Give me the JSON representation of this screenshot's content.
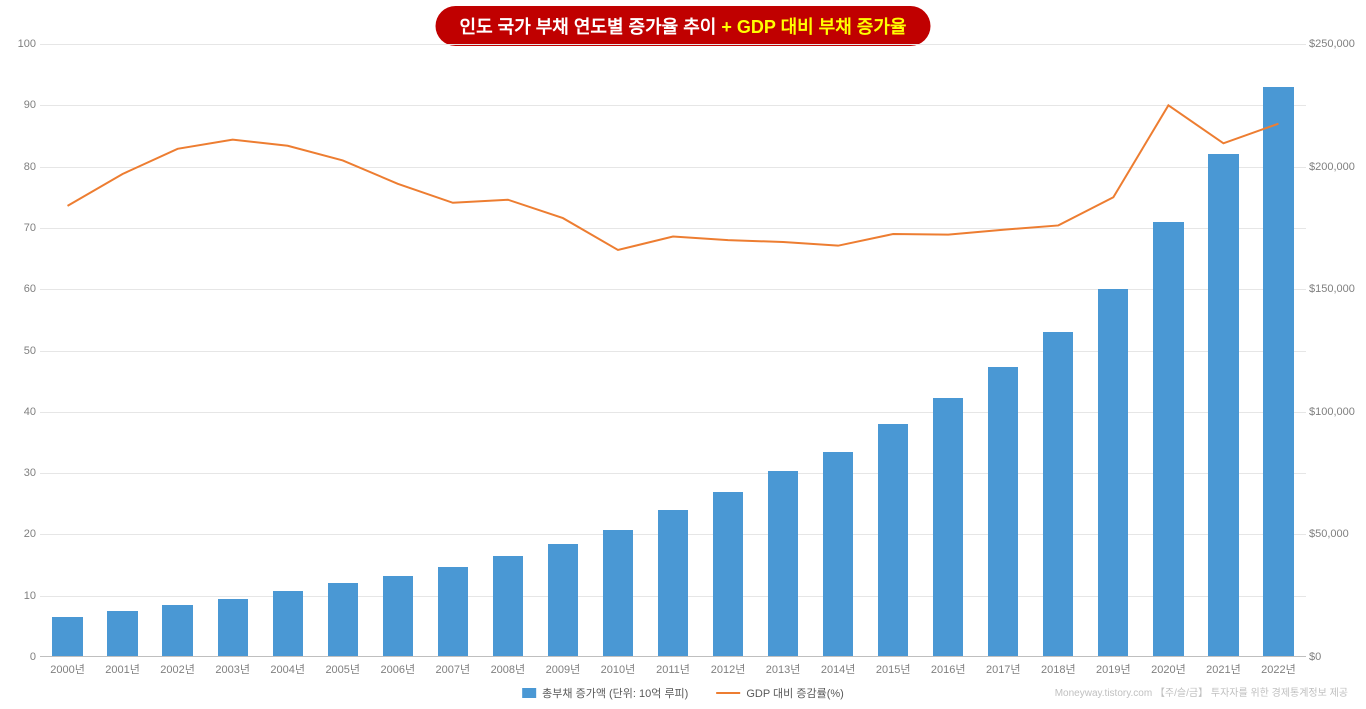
{
  "title": {
    "part1_white": "인도 국가 부채 연도별 증가율 추이 ",
    "plus": "+",
    "part2_yellow": " GDP 대비 부채 증가율",
    "background_color": "#c00000",
    "text_color_primary": "#ffffff",
    "text_color_accent": "#ffff00",
    "fontsize": 18
  },
  "chart": {
    "type": "bar+line",
    "categories": [
      "2000년",
      "2001년",
      "2002년",
      "2003년",
      "2004년",
      "2005년",
      "2006년",
      "2007년",
      "2008년",
      "2009년",
      "2010년",
      "2011년",
      "2012년",
      "2013년",
      "2014년",
      "2015년",
      "2016년",
      "2017년",
      "2018년",
      "2019년",
      "2020년",
      "2021년",
      "2022년"
    ],
    "bar_values_left_axis": [
      6.5,
      7.5,
      8.5,
      9.5,
      10.8,
      12.0,
      13.2,
      14.7,
      16.4,
      18.5,
      20.8,
      24.0,
      27.0,
      30.3,
      33.4,
      38.0,
      42.2,
      47.3,
      53.0,
      60.0,
      71.0,
      82.0,
      93.0
    ],
    "line_values_left_axis": [
      73.6,
      78.8,
      82.9,
      84.4,
      83.4,
      81.0,
      77.2,
      74.1,
      74.6,
      71.6,
      66.4,
      68.6,
      68.0,
      67.7,
      67.1,
      69.0,
      68.9,
      69.7,
      70.4,
      75.0,
      90.0,
      83.8,
      87.0
    ],
    "bar_color": "#4a98d4",
    "line_color": "#ed7d31",
    "line_width": 2,
    "left_axis": {
      "min": 0,
      "max": 100,
      "step": 10,
      "ticks": [
        0,
        10,
        20,
        30,
        40,
        50,
        60,
        70,
        80,
        90,
        100
      ]
    },
    "right_axis": {
      "min": 0,
      "max": 250000,
      "step": 50000,
      "tick_labels": [
        "$0",
        "$50,000",
        "$100,000",
        "$150,000",
        "$200,000",
        "$250,000"
      ]
    },
    "grid_color": "#e6e6e6",
    "axis_line_color": "#bfbfbf",
    "tick_font_color": "#7f7f7f",
    "tick_fontsize": 11
  },
  "legend": {
    "bar_label": "총부채 증가액 (단위: 10억 루피)",
    "line_label": "GDP 대비 증감률(%)"
  },
  "attribution": "Moneyway.tistory.com 【주/슬/금】 투자자를 위한 경제통계정보 제공"
}
